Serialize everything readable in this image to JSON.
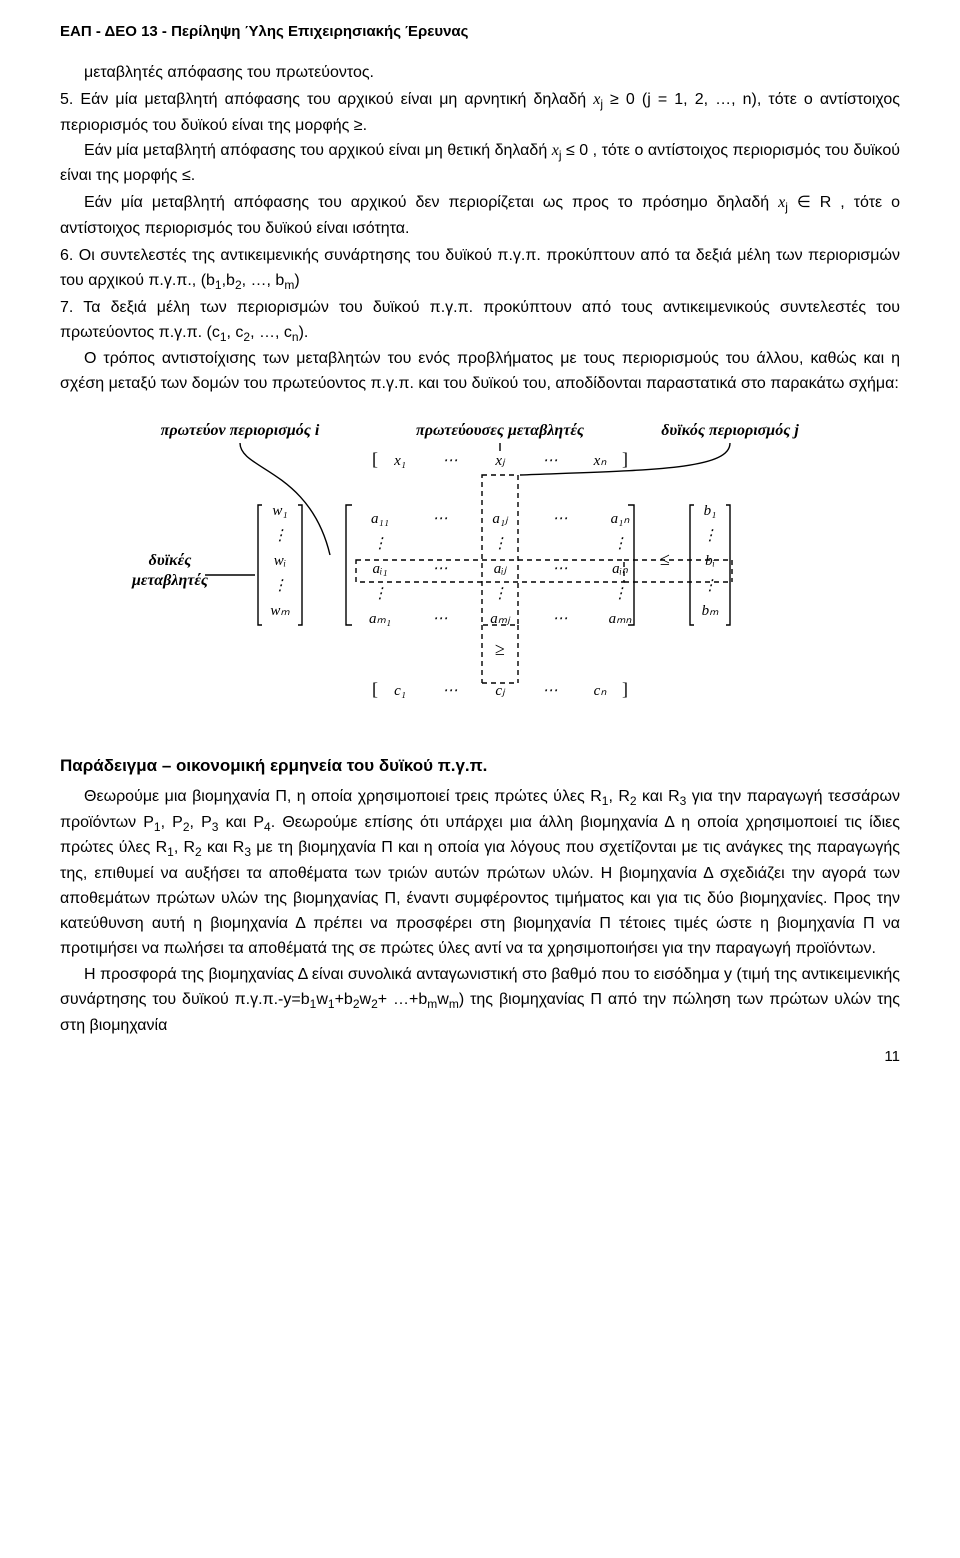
{
  "header": "ΕΑΠ - ΔΕΟ 13 - Περίληψη Ύλης Επιχειρησιακής Έρευνας",
  "p1": "μεταβλητές απόφασης του πρωτεύοντος.",
  "p2a": "5. Εάν μία μεταβλητή απόφασης του αρχικού είναι μη αρνητική δηλαδή ",
  "p2b_math": "x",
  "p2b_sub": "j",
  "p2c": " ≥ 0 (j = 1, 2, …, n), τότε ο αντίστοιχος περιορισμός του δυϊκού είναι της μορφής ≥.",
  "p3a": "Εάν μία μεταβλητή απόφασης του αρχικού είναι μη θετική δηλαδή ",
  "p3c": " ≤ 0 , τότε ο αντίστοιχος περιορισμός του δυϊκού είναι της μορφής ≤.",
  "p4a": "Εάν μία μεταβλητή απόφασης του αρχικού δεν περιορίζεται ως προς το πρόσημο δηλαδή ",
  "p4b_math": "x",
  "p4b_sub": "j",
  "p4c": " ∈ R , τότε ο αντίστοιχος περιορισμός του δυϊκού είναι ισότητα.",
  "p5a": "6. Οι συντελεστές της αντικειμενικής συνάρτησης του δυϊκού π.γ.π. προκύπτουν από τα δεξιά μέλη των περιορισμών του αρχικού π.γ.π., (b",
  "p5b": "1",
  "p5c": ",b",
  "p5d": "2",
  "p5e": ", …, b",
  "p5f": "m",
  "p5g": ")",
  "p6a": "7. Τα δεξιά μέλη των περιορισμών του δυϊκού π.γ.π. προκύπτουν από τους αντικειμενικούς συντελεστές του πρωτεύοντος π.γ.π. (c",
  "p6b": "1",
  "p6c": ", c",
  "p6d": "2",
  "p6e": ", …, c",
  "p6f": "n",
  "p6g": ").",
  "p7": "Ο τρόπος αντιστοίχισης των μεταβλητών του ενός προβλήματος με τους περιορισμούς του άλλου, καθώς και η σχέση μεταξύ των δομών του πρωτεύοντος π.γ.π. και του δυϊκού του, αποδίδονται παραστατικά στο παρακάτω σχήμα:",
  "diagram": {
    "top_left_label": "πρωτεύον περιορισμός i",
    "top_mid_label": "πρωτεύουσες μεταβλητές",
    "top_right_label": "δυϊκός περιορισμός j",
    "left_label_l1": "δυϊκές",
    "left_label_l2": "μεταβλητές",
    "x_row": [
      "x₁",
      "⋯",
      "xⱼ",
      "⋯",
      "xₙ"
    ],
    "w_col": [
      "w₁",
      "⋮",
      "wᵢ",
      "⋮",
      "wₘ"
    ],
    "a_matrix": [
      [
        "a₁₁",
        "⋯",
        "a₁ⱼ",
        "⋯",
        "a₁ₙ"
      ],
      [
        "⋮",
        "",
        "⋮",
        "",
        "⋮"
      ],
      [
        "aᵢ₁",
        "⋯",
        "aᵢⱼ",
        "⋯",
        "aᵢₙ"
      ],
      [
        "⋮",
        "",
        "⋮",
        "",
        "⋮"
      ],
      [
        "aₘ₁",
        "⋯",
        "aₘⱼ",
        "⋯",
        "aₘₙ"
      ]
    ],
    "b_col": [
      "b₁",
      "⋮",
      "bᵢ",
      "⋮",
      "bₘ"
    ],
    "c_row": [
      "c₁",
      "⋯",
      "cⱼ",
      "⋯",
      "cₙ"
    ],
    "le_sign": "≤",
    "ge_sign": "≥",
    "colors": {
      "text": "#000000",
      "line": "#000000",
      "dash_line": "#000000",
      "background": "#ffffff"
    },
    "font_family": "Times New Roman, serif",
    "font_size_label": 16,
    "font_size_cell": 15
  },
  "section_title": "Παράδειγμα – οικονομική ερμηνεία του δυϊκού π.γ.π.",
  "p8a": "Θεωρούμε μια βιομηχανία Π, η οποία χρησιμοποιεί τρεις πρώτες ύλες R",
  "p8b": "1",
  "p8c": ", R",
  "p8d": "2",
  "p8e": " και R",
  "p8f": "3",
  "p8g": " για την παραγωγή τεσσάρων προϊόντων P",
  "p8h": "1",
  "p8i": ", P",
  "p8j": "2",
  "p8k": ", P",
  "p8l": "3",
  "p8m": " και P",
  "p8n": "4",
  "p8o": ". Θεωρούμε επίσης ότι υπάρχει μια άλλη βιομηχανία Δ η οποία χρησιμοποιεί τις ίδιες πρώτες ύλες R",
  "p8p": "1",
  "p8q": ", R",
  "p8r": "2",
  "p8s": " και R",
  "p8t": "3",
  "p8u": " με τη βιομηχανία Π και η οποία για λόγους που σχετίζονται με τις ανάγκες της παραγωγής της, επιθυμεί να αυξήσει τα αποθέματα των τριών αυτών πρώτων υλών. Η βιομηχανία Δ σχεδιάζει την αγορά των αποθεμάτων πρώτων υλών της βιομηχανίας Π, έναντι συμφέροντος τιμήματος και για τις δύο βιομηχανίες. Προς την κατεύθυνση αυτή η βιομηχανία Δ πρέπει να προσφέρει στη βιομηχανία Π τέτοιες τιμές ώστε η βιομηχανία Π να προτιμήσει να πωλήσει τα αποθέματά της σε πρώτες ύλες αντί να τα χρησιμοποιήσει για την παραγωγή προϊόντων.",
  "p9a": "Η προσφορά της βιομηχανίας Δ είναι συνολικά ανταγωνιστική στο βαθμό που το εισόδημα y (τιμή της αντικειμενικής συνάρτησης του δυϊκού π.γ.π.-y=b",
  "p9b": "1",
  "p9c": "w",
  "p9d": "1",
  "p9e": "+b",
  "p9f": "2",
  "p9g": "w",
  "p9h": "2",
  "p9i": "+ …+b",
  "p9j": "m",
  "p9k": "w",
  "p9l": "m",
  "p9m": ") της βιομηχανίας Π από την πώληση των πρώτων υλών της στη βιομηχανία",
  "page_num": "11"
}
